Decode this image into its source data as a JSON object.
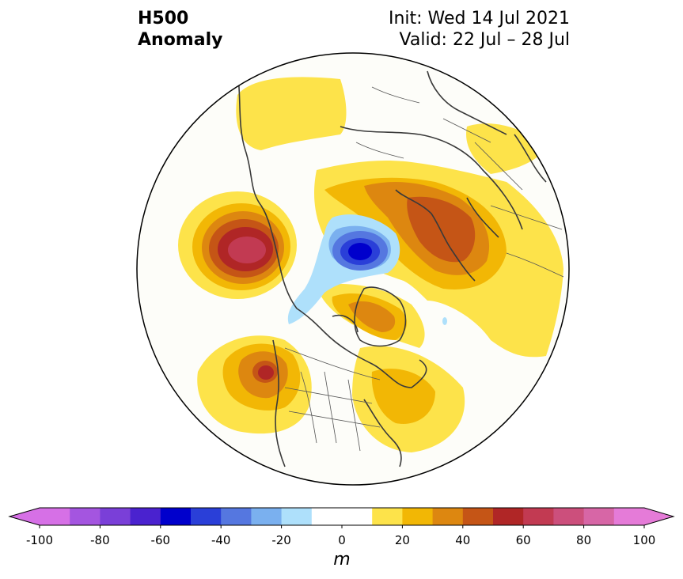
{
  "header": {
    "field_line1": "H500",
    "field_line2": "Anomaly",
    "init_text": "Init: Wed 14 Jul 2021",
    "valid_text": "Valid: 22 Jul – 28 Jul"
  },
  "colorbar": {
    "unit": "m",
    "min": -100,
    "max": 100,
    "step": 10,
    "tick_labels": [
      "-100",
      "-80",
      "-60",
      "-40",
      "-20",
      "0",
      "20",
      "40",
      "60",
      "80",
      "100"
    ],
    "colors": [
      "#d670e6",
      "#a455e0",
      "#7a3fd8",
      "#4a22cf",
      "#0000cc",
      "#2a3fd8",
      "#5577e0",
      "#7ab0ef",
      "#aee0fb",
      "#ffffff",
      "#ffffff",
      "#fde34a",
      "#f2b705",
      "#dd8710",
      "#c55516",
      "#b02626",
      "#c23a52",
      "#cc4f7c",
      "#d766a6",
      "#e57bd8"
    ],
    "extend": "both"
  },
  "map": {
    "projection": "north-polar-stereographic",
    "background": "#fdfdf9"
  }
}
